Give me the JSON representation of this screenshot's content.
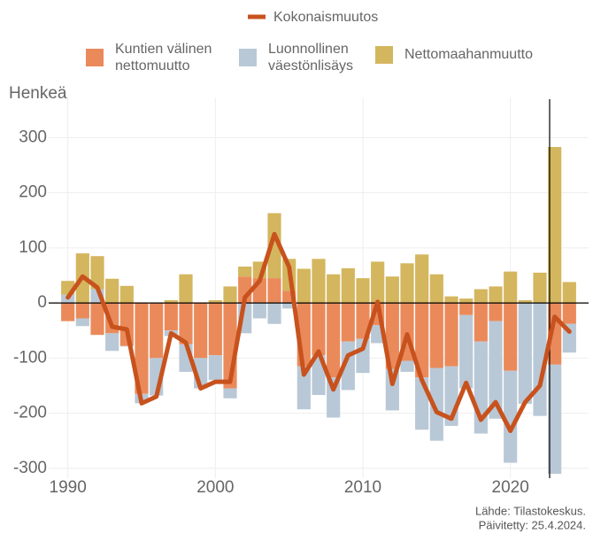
{
  "chart_data": {
    "type": "bar",
    "y_label": "Henkeä",
    "source": "Lähde: Tilastokeskus.",
    "updated": "Päivitetty: 25.4.2024.",
    "x": [
      1990,
      1991,
      1992,
      1993,
      1994,
      1995,
      1996,
      1997,
      1998,
      1999,
      2000,
      2001,
      2002,
      2003,
      2004,
      2005,
      2006,
      2007,
      2008,
      2009,
      2010,
      2011,
      2012,
      2013,
      2014,
      2015,
      2016,
      2017,
      2018,
      2019,
      2020,
      2021,
      2022,
      2023,
      2024
    ],
    "xlim": [
      1988.7,
      2025.3
    ],
    "xticks": [
      1990,
      2000,
      2010,
      2020
    ],
    "ylim": [
      -318,
      373
    ],
    "yticks": [
      -300,
      -200,
      -100,
      0,
      100,
      200,
      300
    ],
    "grid": true,
    "series": [
      {
        "name": "Kuntien välinen nettomuutto",
        "color": "#ea8a5b",
        "values": [
          -33,
          -28,
          -58,
          -55,
          -78,
          -165,
          -100,
          -50,
          -75,
          -100,
          -95,
          -155,
          48,
          45,
          45,
          22,
          -115,
          -95,
          -135,
          -70,
          -65,
          -40,
          -120,
          -105,
          -135,
          -118,
          -115,
          -22,
          -70,
          -33,
          -123,
          0,
          0,
          -112,
          -38
        ]
      },
      {
        "name": "Luonnollinen väestönlisäys",
        "color": "#b9c8d6",
        "values": [
          15,
          -14,
          25,
          -32,
          -1,
          -17,
          -68,
          -10,
          -50,
          -55,
          -45,
          -18,
          -55,
          -28,
          -38,
          -10,
          -78,
          -72,
          -73,
          -88,
          -62,
          -33,
          -75,
          -20,
          -95,
          -132,
          -108,
          -133,
          -167,
          -177,
          -167,
          -183,
          -205,
          -198,
          -52
        ]
      },
      {
        "name": "Nettomaahanmuutto",
        "color": "#d4b65e",
        "values": [
          25,
          90,
          60,
          44,
          31,
          0,
          0,
          5,
          52,
          0,
          5,
          30,
          18,
          30,
          118,
          58,
          62,
          80,
          52,
          63,
          45,
          75,
          48,
          72,
          88,
          52,
          12,
          8,
          25,
          30,
          57,
          5,
          55,
          283,
          38
        ]
      },
      {
        "name": "Kokonaismuutos",
        "color": "#c8521d",
        "line": true,
        "values": [
          10,
          48,
          28,
          -43,
          -48,
          -182,
          -170,
          -55,
          -72,
          -155,
          -143,
          -143,
          10,
          40,
          125,
          65,
          -130,
          -88,
          -157,
          -95,
          -83,
          2,
          -147,
          -57,
          -140,
          -198,
          -210,
          -145,
          -212,
          -180,
          -232,
          -180,
          -150,
          -25,
          -52
        ]
      }
    ]
  }
}
